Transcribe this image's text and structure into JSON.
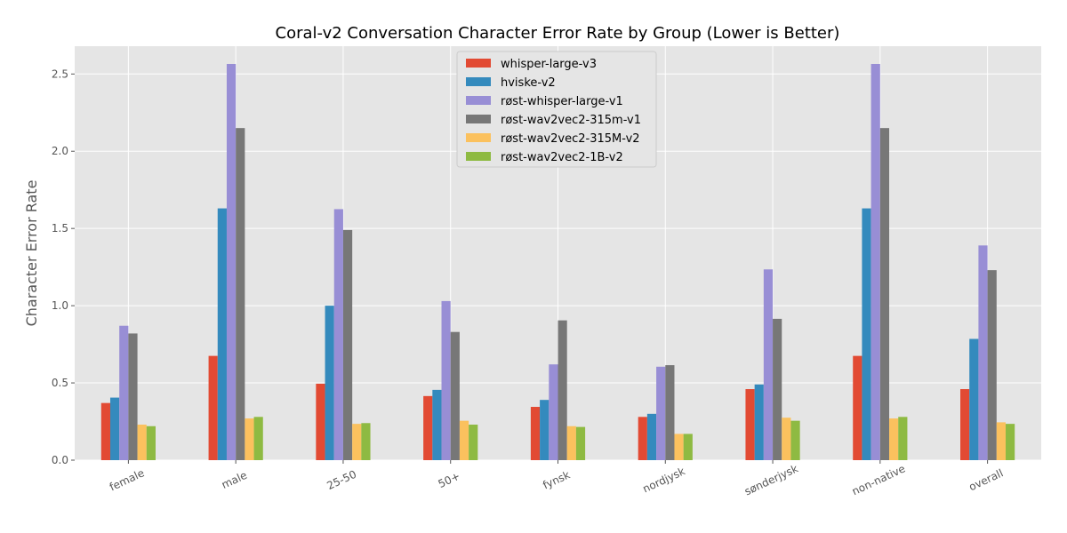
{
  "chart_data": {
    "type": "bar",
    "title": "Coral-v2 Conversation Character Error Rate by Group (Lower is Better)",
    "xlabel": "",
    "ylabel": "Character Error Rate",
    "ylim": [
      0,
      2.68
    ],
    "yticks": [
      "0.0",
      "0.5",
      "1.0",
      "1.5",
      "2.0",
      "2.5"
    ],
    "grid": true,
    "legend_position": "top-center",
    "categories": [
      "female",
      "male",
      "25-50",
      "50+",
      "fynsk",
      "nordjysk",
      "sønderjysk",
      "non-native",
      "overall"
    ],
    "series": [
      {
        "name": "whisper-large-v3",
        "color": "#e24a33",
        "values": [
          0.37,
          0.675,
          0.495,
          0.415,
          0.345,
          0.28,
          0.46,
          0.675,
          0.46
        ]
      },
      {
        "name": "hviske-v2",
        "color": "#348abd",
        "values": [
          0.405,
          1.63,
          1.0,
          0.455,
          0.39,
          0.3,
          0.49,
          1.63,
          0.785
        ]
      },
      {
        "name": "røst-whisper-large-v1",
        "color": "#988ed5",
        "values": [
          0.87,
          2.565,
          1.625,
          1.03,
          0.62,
          0.605,
          1.235,
          2.565,
          1.39
        ]
      },
      {
        "name": "røst-wav2vec2-315m-v1",
        "color": "#777777",
        "values": [
          0.82,
          2.15,
          1.49,
          0.83,
          0.905,
          0.615,
          0.915,
          2.15,
          1.23
        ]
      },
      {
        "name": "røst-wav2vec2-315M-v2",
        "color": "#fbc15e",
        "values": [
          0.23,
          0.27,
          0.235,
          0.255,
          0.22,
          0.17,
          0.275,
          0.27,
          0.245
        ]
      },
      {
        "name": "røst-wav2vec2-1B-v2",
        "color": "#8eba42",
        "values": [
          0.22,
          0.28,
          0.24,
          0.23,
          0.215,
          0.17,
          0.255,
          0.28,
          0.235
        ]
      }
    ]
  }
}
